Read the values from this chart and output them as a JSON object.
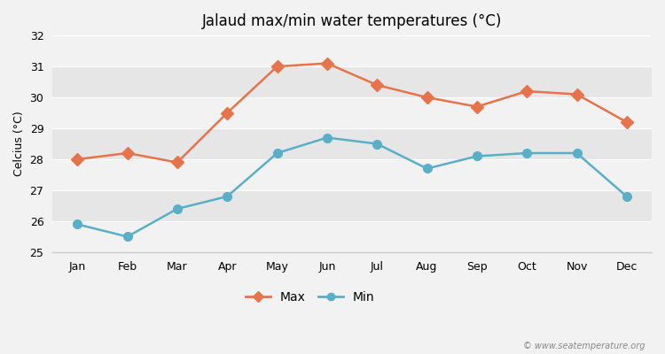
{
  "title": "Jalaud max/min water temperatures (°C)",
  "ylabel": "Celcius (°C)",
  "months": [
    "Jan",
    "Feb",
    "Mar",
    "Apr",
    "May",
    "Jun",
    "Jul",
    "Aug",
    "Sep",
    "Oct",
    "Nov",
    "Dec"
  ],
  "max_temps": [
    28.0,
    28.2,
    27.9,
    29.5,
    31.0,
    31.1,
    30.4,
    30.0,
    29.7,
    30.2,
    30.1,
    29.2
  ],
  "min_temps": [
    25.9,
    25.5,
    26.4,
    26.8,
    28.2,
    28.7,
    28.5,
    27.7,
    28.1,
    28.2,
    28.2,
    26.8
  ],
  "max_color": "#e8734a",
  "min_color": "#5aafc8",
  "bg_color": "#f2f2f2",
  "plot_bg_light": "#f2f2f2",
  "plot_bg_dark": "#e6e6e6",
  "ylim": [
    25,
    32
  ],
  "yticks": [
    25,
    26,
    27,
    28,
    29,
    30,
    31,
    32
  ],
  "legend_labels": [
    "Max",
    "Min"
  ],
  "watermark": "© www.seatemperature.org",
  "linewidth": 1.8,
  "max_markersize": 7,
  "min_markersize": 7
}
